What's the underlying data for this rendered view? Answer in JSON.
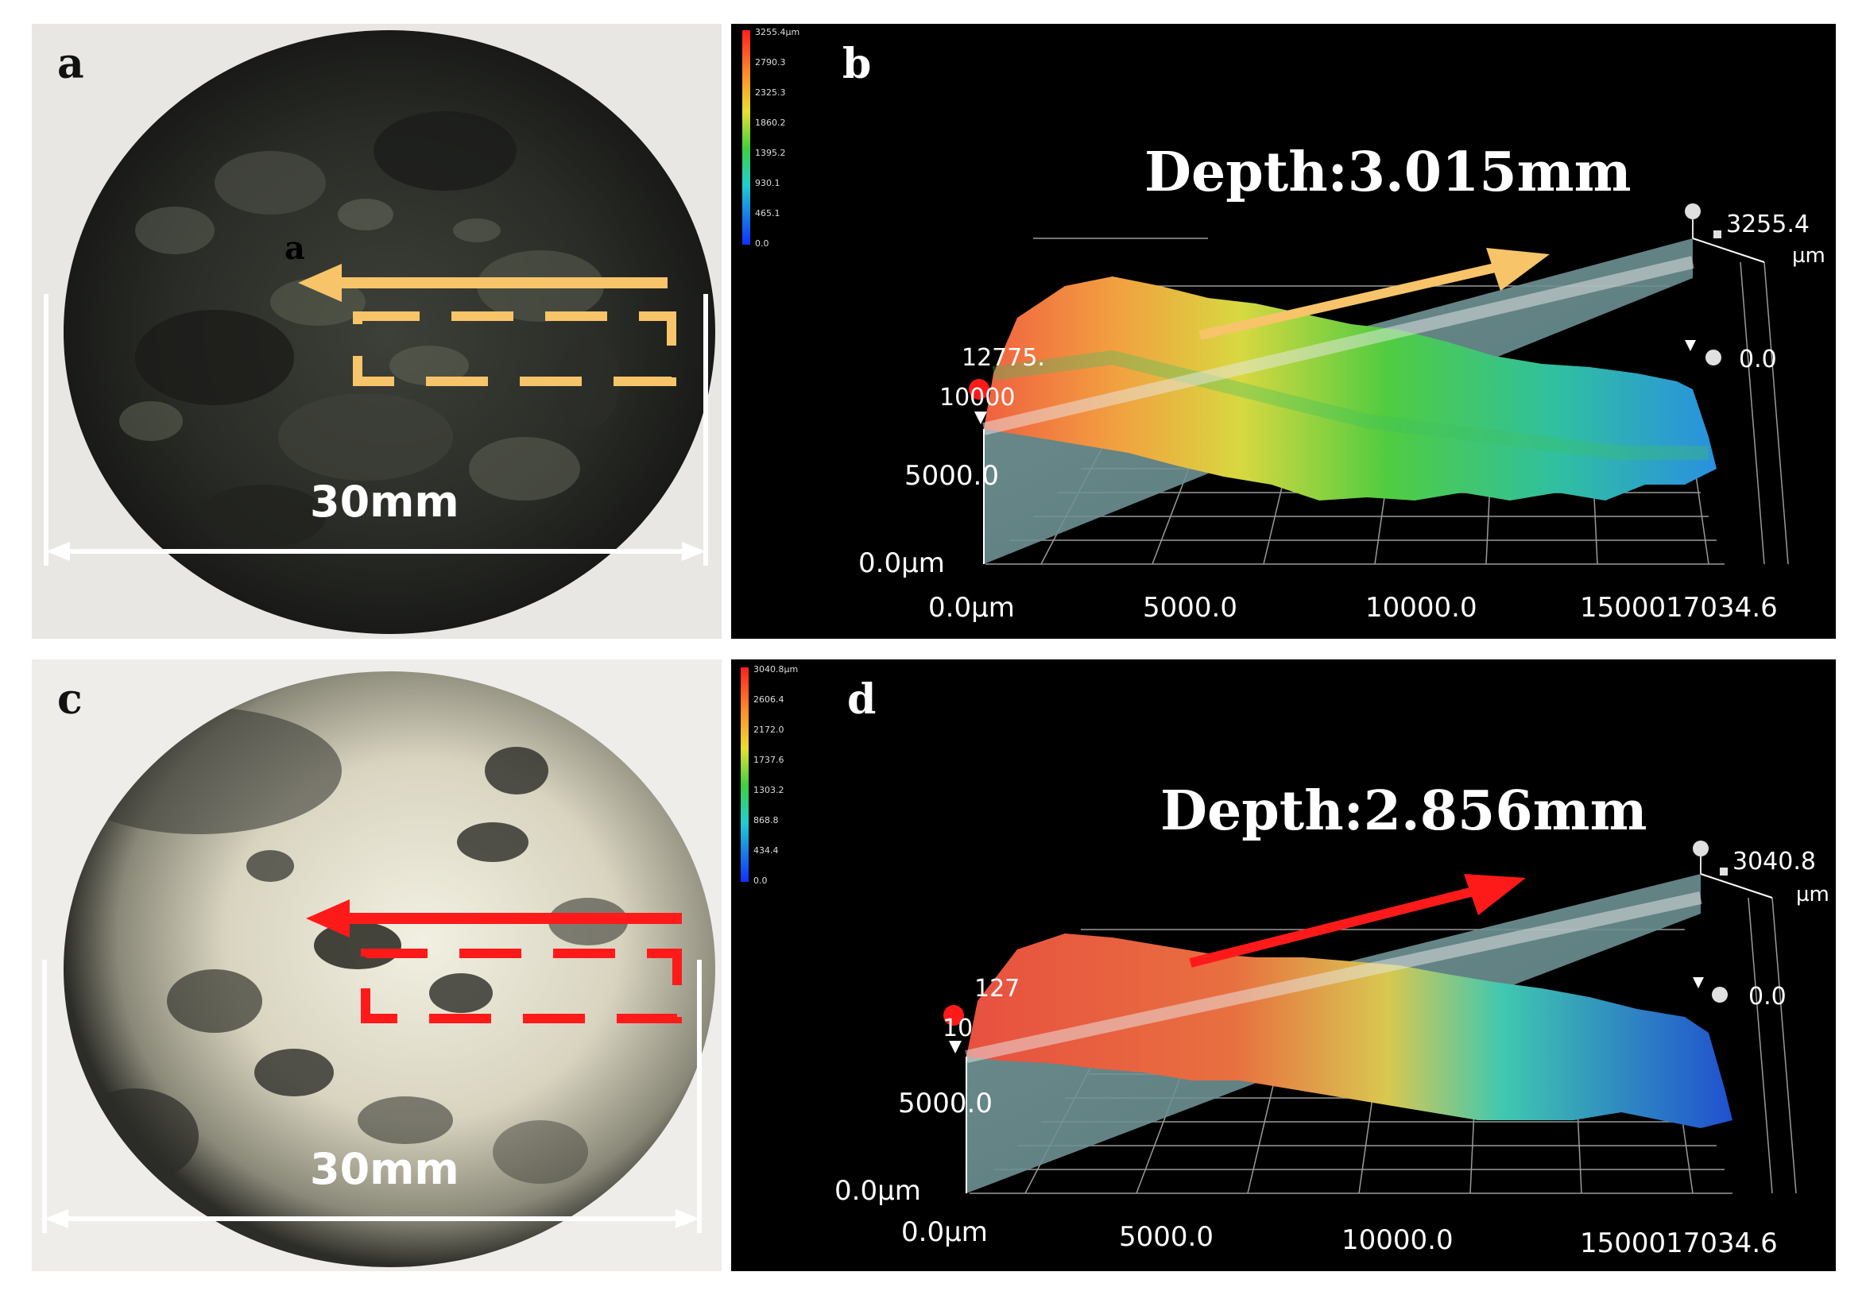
{
  "panels": {
    "a": {
      "label": "a",
      "inner_label": "a",
      "scale": "30mm",
      "arrow_color": "#f7c46a"
    },
    "b": {
      "label": "b",
      "depth": "Depth:3.015mm",
      "arrow_color": "#f7c46a",
      "z_max": "3255.4",
      "z_unit": "µm",
      "z_min": "0.0",
      "y_top": "12775.",
      "y_mid_partial": "10000",
      "y_5000": "5000.0",
      "y_0": "0.0µm",
      "x_0": "0.0µm",
      "x_5000": "5000.0",
      "x_10000": "10000.0",
      "x_end": "1500017034.6",
      "colorbar": [
        "3255.4µm",
        "2790.3",
        "2325.3",
        "1860.2",
        "1395.2",
        "930.1",
        "465.1",
        "0.0"
      ]
    },
    "c": {
      "label": "c",
      "scale": "30mm",
      "arrow_color": "#ff1a1a"
    },
    "d": {
      "label": "d",
      "depth": "Depth:2.856mm",
      "arrow_color": "#ff1a1a",
      "z_max": "3040.8",
      "z_unit": "µm",
      "z_min": "0.0",
      "y_top": "127",
      "y_mid_partial": "10",
      "y_5000": "5000.0",
      "y_0": "0.0µm",
      "x_0": "0.0µm",
      "x_5000": "5000.0",
      "x_10000": "10000.0",
      "x_end": "1500017034.6",
      "colorbar": [
        "3040.8µm",
        "2606.4",
        "2172.0",
        "1737.6",
        "1303.2",
        "868.8",
        "434.4",
        "0.0"
      ]
    }
  }
}
